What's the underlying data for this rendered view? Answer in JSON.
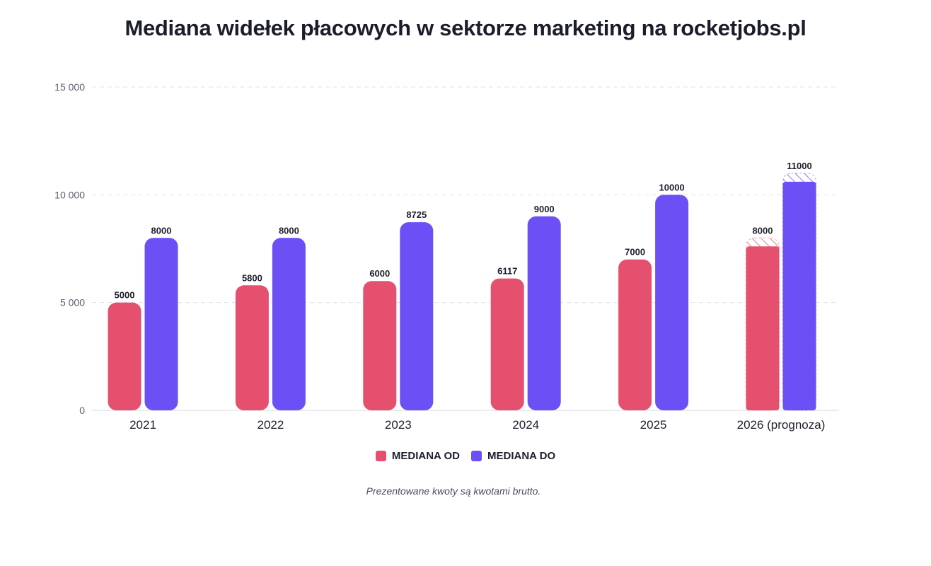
{
  "chart_data": {
    "type": "bar",
    "title": "Mediana widełek płacowych w sektorze marketing na rocketjobs.pl",
    "categories": [
      "2021",
      "2022",
      "2023",
      "2024",
      "2025",
      "2026 (prognoza)"
    ],
    "series": [
      {
        "name": "MEDIANA OD",
        "color": "#e5506f",
        "values": [
          5000,
          5800,
          6000,
          6117,
          7000,
          8000
        ],
        "labels": [
          "5000",
          "5800",
          "6000",
          "6117",
          "7000",
          "8000"
        ]
      },
      {
        "name": "MEDIANA DO",
        "color": "#6c4ff5",
        "values": [
          8000,
          8000,
          8725,
          9000,
          10000,
          11000
        ],
        "labels": [
          "8000",
          "8000",
          "8725",
          "9000",
          "10000",
          "11000"
        ]
      }
    ],
    "forecast_category": "2026 (prognoza)",
    "ylim": [
      0,
      15000
    ],
    "yticks": [
      0,
      5000,
      10000,
      15000
    ],
    "ytick_labels": [
      "0",
      "5 000",
      "10 000",
      "15 000"
    ],
    "grid": true,
    "legend_position": "bottom-center",
    "footnote": "Prezentowane kwoty są kwotami brutto."
  }
}
